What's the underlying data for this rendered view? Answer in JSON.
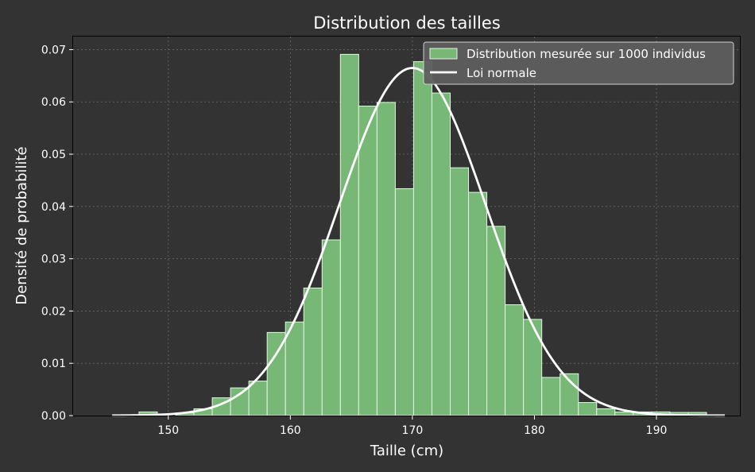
{
  "chart_data": {
    "type": "bar",
    "title": "Distribution des tailles",
    "xlabel": "Taille (cm)",
    "ylabel": "Densité de probabilité",
    "xlim": [
      142.2,
      196.9
    ],
    "ylim": [
      0,
      0.0725
    ],
    "xticks": [
      150,
      160,
      170,
      180,
      190
    ],
    "yticks": [
      0.0,
      0.01,
      0.02,
      0.03,
      0.04,
      0.05,
      0.06,
      0.07
    ],
    "ytick_labels": [
      "0.00",
      "0.01",
      "0.02",
      "0.03",
      "0.04",
      "0.05",
      "0.06",
      "0.07"
    ],
    "grid": true,
    "legend_position": "top-right",
    "colors": {
      "background": "#333333",
      "bar_fill": "#77b877",
      "bar_edge": "#e6f2e6",
      "line": "#ffffff",
      "grid": "#6a6a6a",
      "legend_bg": "#5e5e5e"
    },
    "histogram": {
      "name": "Distribution mesurée sur 1000 individus",
      "bin_start": 147.6,
      "bin_width": 1.5,
      "values": [
        0.0007,
        0.0,
        0.0005,
        0.0013,
        0.0034,
        0.0053,
        0.0066,
        0.0159,
        0.0179,
        0.0244,
        0.0336,
        0.0691,
        0.0592,
        0.0599,
        0.0434,
        0.0677,
        0.0617,
        0.0474,
        0.0427,
        0.0362,
        0.0212,
        0.0184,
        0.0073,
        0.008,
        0.0025,
        0.0013,
        0.0007,
        0.0007,
        0.0007,
        0.0006,
        0.0006
      ]
    },
    "normal_curve": {
      "name": "Loi normale",
      "mean": 170.0,
      "std": 6.0,
      "x_range": [
        145.4,
        195.6
      ]
    }
  }
}
